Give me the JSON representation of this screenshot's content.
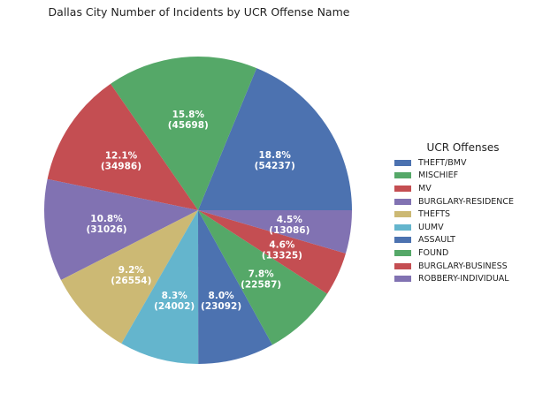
{
  "chart_data": {
    "type": "pie",
    "title": "Dallas City Number of Incidents by UCR Offense Name",
    "legend_title": "UCR Offenses",
    "legend_position": "right",
    "start_angle_deg": 0,
    "direction": "counterclockwise",
    "slices": [
      {
        "name": "THEFT/BMV",
        "value": 54237,
        "percent": "18.8%",
        "count_label": "(54237)",
        "color": "#4c72b0"
      },
      {
        "name": "MISCHIEF",
        "value": 45698,
        "percent": "15.8%",
        "count_label": "(45698)",
        "color": "#55a868"
      },
      {
        "name": "MV",
        "value": 34986,
        "percent": "12.1%",
        "count_label": "(34986)",
        "color": "#c44e52"
      },
      {
        "name": "BURGLARY-RESIDENCE",
        "value": 31026,
        "percent": "10.8%",
        "count_label": "(31026)",
        "color": "#8172b2"
      },
      {
        "name": "THEFTS",
        "value": 26554,
        "percent": "9.2%",
        "count_label": "(26554)",
        "color": "#ccb974"
      },
      {
        "name": "UUMV",
        "value": 24002,
        "percent": "8.3%",
        "count_label": "(24002)",
        "color": "#64b5cd"
      },
      {
        "name": "ASSAULT",
        "value": 23092,
        "percent": "8.0%",
        "count_label": "(23092)",
        "color": "#4c72b0"
      },
      {
        "name": "FOUND",
        "value": 22587,
        "percent": "7.8%",
        "count_label": "(22587)",
        "color": "#55a868"
      },
      {
        "name": "BURGLARY-BUSINESS",
        "value": 13325,
        "percent": "4.6%",
        "count_label": "(13325)",
        "color": "#c44e52"
      },
      {
        "name": "ROBBERY-INDIVIDUAL",
        "value": 13086,
        "percent": "4.5%",
        "count_label": "(13086)",
        "color": "#8172b2"
      }
    ]
  }
}
